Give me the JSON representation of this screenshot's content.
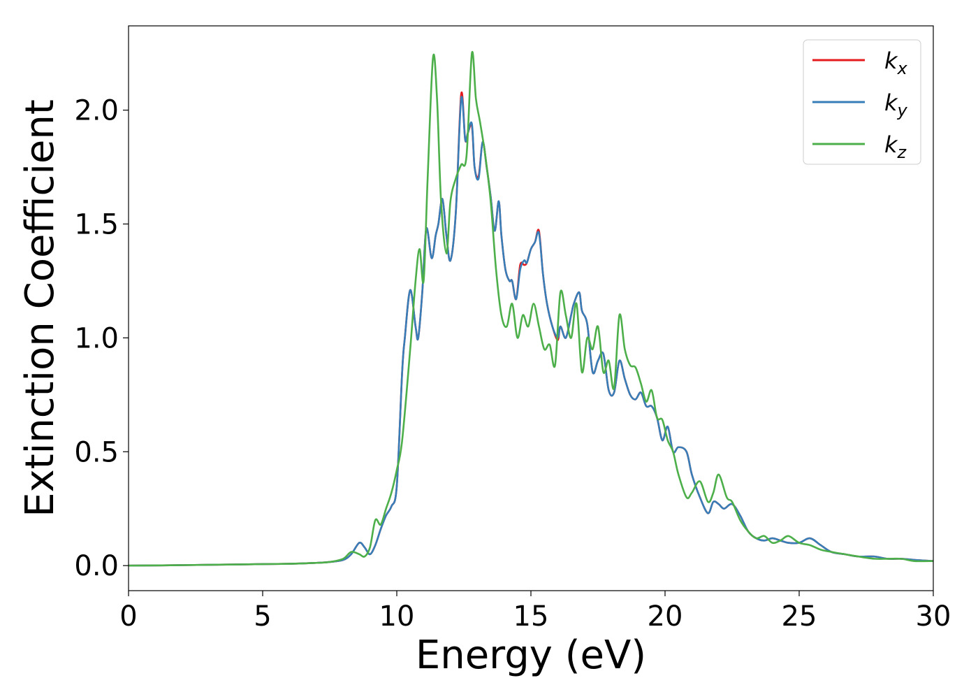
{
  "chart_data": {
    "type": "line",
    "xlabel": "Energy (eV)",
    "ylabel": "Extinction Coefficient",
    "xlim": [
      0,
      30
    ],
    "ylim": [
      -0.11,
      2.37
    ],
    "xticks": [
      0,
      5,
      10,
      15,
      20,
      25,
      30
    ],
    "xtick_labels": [
      "0",
      "5",
      "10",
      "15",
      "20",
      "25",
      "30"
    ],
    "yticks": [
      0.0,
      0.5,
      1.0,
      1.5,
      2.0
    ],
    "ytick_labels": [
      "0.0",
      "0.5",
      "1.0",
      "1.5",
      "2.0"
    ],
    "grid": false,
    "legend_position": "top-right",
    "series": [
      {
        "name": "k_x",
        "label_main": "k",
        "label_sub": "x",
        "color": "#e41a1c",
        "x": [
          0,
          2,
          4,
          6,
          7,
          7.5,
          8,
          8.3,
          8.6,
          8.8,
          9.0,
          9.2,
          9.4,
          9.6,
          9.8,
          10.0,
          10.2,
          10.3,
          10.5,
          10.7,
          10.8,
          10.95,
          11.1,
          11.3,
          11.45,
          11.55,
          11.7,
          11.85,
          12.0,
          12.2,
          12.4,
          12.55,
          12.65,
          12.8,
          12.9,
          13.05,
          13.2,
          13.35,
          13.5,
          13.65,
          13.8,
          13.9,
          14.05,
          14.2,
          14.3,
          14.45,
          14.6,
          14.75,
          14.85,
          15.0,
          15.15,
          15.3,
          15.45,
          15.6,
          15.8,
          16.0,
          16.1,
          16.3,
          16.5,
          16.6,
          16.8,
          16.9,
          17.1,
          17.3,
          17.5,
          17.7,
          17.9,
          18.1,
          18.3,
          18.5,
          18.7,
          18.9,
          19.1,
          19.3,
          19.5,
          19.7,
          19.9,
          20.1,
          20.3,
          20.5,
          20.8,
          21.0,
          21.3,
          21.6,
          21.8,
          22.0,
          22.2,
          22.5,
          22.8,
          23.1,
          23.4,
          23.7,
          24.0,
          24.3,
          24.6,
          25.0,
          25.4,
          25.8,
          26.2,
          26.7,
          27.2,
          27.8,
          28.3,
          28.8,
          29.3,
          30.0
        ],
        "y": [
          0.0,
          0.002,
          0.005,
          0.008,
          0.012,
          0.016,
          0.025,
          0.05,
          0.1,
          0.08,
          0.05,
          0.09,
          0.16,
          0.22,
          0.26,
          0.35,
          0.85,
          1.0,
          1.21,
          1.05,
          1.0,
          1.2,
          1.48,
          1.35,
          1.45,
          1.5,
          1.61,
          1.45,
          1.34,
          1.55,
          2.07,
          1.87,
          1.9,
          1.93,
          1.75,
          1.71,
          1.86,
          1.75,
          1.62,
          1.47,
          1.6,
          1.45,
          1.3,
          1.25,
          1.25,
          1.17,
          1.32,
          1.32,
          1.33,
          1.39,
          1.42,
          1.47,
          1.28,
          1.15,
          1.05,
          0.99,
          1.05,
          1.0,
          1.1,
          1.15,
          1.2,
          1.12,
          1.06,
          0.85,
          0.9,
          0.93,
          0.77,
          0.76,
          0.9,
          0.82,
          0.75,
          0.73,
          0.76,
          0.7,
          0.7,
          0.65,
          0.55,
          0.61,
          0.5,
          0.52,
          0.5,
          0.4,
          0.3,
          0.23,
          0.28,
          0.27,
          0.25,
          0.27,
          0.22,
          0.15,
          0.12,
          0.11,
          0.12,
          0.11,
          0.1,
          0.1,
          0.12,
          0.09,
          0.06,
          0.05,
          0.04,
          0.04,
          0.03,
          0.03,
          0.025,
          0.02
        ]
      },
      {
        "name": "k_y",
        "label_main": "k",
        "label_sub": "y",
        "color": "#377eb8",
        "x": [
          0,
          2,
          4,
          6,
          7,
          7.5,
          8,
          8.3,
          8.6,
          8.8,
          9.0,
          9.2,
          9.4,
          9.6,
          9.8,
          10.0,
          10.2,
          10.3,
          10.5,
          10.7,
          10.8,
          10.95,
          11.1,
          11.3,
          11.45,
          11.55,
          11.7,
          11.85,
          12.0,
          12.2,
          12.4,
          12.55,
          12.65,
          12.8,
          12.9,
          13.05,
          13.2,
          13.35,
          13.5,
          13.65,
          13.8,
          13.9,
          14.05,
          14.2,
          14.3,
          14.45,
          14.6,
          14.75,
          14.85,
          15.0,
          15.15,
          15.3,
          15.45,
          15.6,
          15.8,
          16.0,
          16.1,
          16.3,
          16.5,
          16.6,
          16.8,
          16.9,
          17.1,
          17.3,
          17.5,
          17.7,
          17.9,
          18.1,
          18.3,
          18.5,
          18.7,
          18.9,
          19.1,
          19.3,
          19.5,
          19.7,
          19.9,
          20.1,
          20.3,
          20.5,
          20.8,
          21.0,
          21.3,
          21.6,
          21.8,
          22.0,
          22.2,
          22.5,
          22.8,
          23.1,
          23.4,
          23.7,
          24.0,
          24.3,
          24.6,
          25.0,
          25.4,
          25.8,
          26.2,
          26.7,
          27.2,
          27.8,
          28.3,
          28.8,
          29.3,
          30.0
        ],
        "y": [
          0.0,
          0.002,
          0.005,
          0.008,
          0.012,
          0.016,
          0.025,
          0.05,
          0.1,
          0.08,
          0.05,
          0.09,
          0.16,
          0.22,
          0.26,
          0.35,
          0.85,
          1.0,
          1.21,
          1.05,
          1.0,
          1.2,
          1.48,
          1.35,
          1.45,
          1.5,
          1.61,
          1.45,
          1.34,
          1.55,
          2.05,
          1.87,
          1.9,
          1.94,
          1.75,
          1.7,
          1.86,
          1.75,
          1.62,
          1.47,
          1.6,
          1.45,
          1.3,
          1.25,
          1.25,
          1.17,
          1.3,
          1.34,
          1.33,
          1.39,
          1.42,
          1.46,
          1.28,
          1.15,
          1.05,
          1.0,
          1.05,
          1.0,
          1.1,
          1.15,
          1.2,
          1.12,
          1.06,
          0.85,
          0.9,
          0.93,
          0.77,
          0.76,
          0.9,
          0.82,
          0.75,
          0.73,
          0.76,
          0.7,
          0.7,
          0.65,
          0.55,
          0.61,
          0.5,
          0.52,
          0.5,
          0.4,
          0.3,
          0.23,
          0.28,
          0.27,
          0.25,
          0.27,
          0.22,
          0.15,
          0.12,
          0.11,
          0.12,
          0.11,
          0.1,
          0.1,
          0.12,
          0.09,
          0.06,
          0.05,
          0.04,
          0.04,
          0.03,
          0.03,
          0.025,
          0.02
        ]
      },
      {
        "name": "k_z",
        "label_main": "k",
        "label_sub": "z",
        "color": "#4daf4a",
        "x": [
          0,
          2,
          4,
          6,
          7,
          7.5,
          8,
          8.3,
          8.6,
          8.8,
          9.0,
          9.2,
          9.4,
          9.6,
          9.8,
          10.0,
          10.2,
          10.5,
          10.7,
          10.85,
          11.0,
          11.15,
          11.35,
          11.5,
          11.65,
          11.85,
          12.0,
          12.2,
          12.4,
          12.6,
          12.8,
          12.95,
          13.1,
          13.3,
          13.5,
          13.7,
          13.9,
          14.1,
          14.3,
          14.5,
          14.7,
          14.9,
          15.1,
          15.3,
          15.5,
          15.7,
          15.9,
          16.1,
          16.3,
          16.5,
          16.7,
          16.9,
          17.1,
          17.3,
          17.5,
          17.7,
          17.9,
          18.1,
          18.3,
          18.5,
          18.7,
          18.9,
          19.1,
          19.3,
          19.5,
          19.7,
          19.9,
          20.1,
          20.3,
          20.5,
          20.8,
          21.0,
          21.3,
          21.6,
          21.8,
          22.0,
          22.3,
          22.5,
          22.8,
          23.1,
          23.4,
          23.7,
          24.0,
          24.3,
          24.6,
          25.0,
          25.4,
          25.8,
          26.2,
          26.7,
          27.2,
          27.8,
          28.3,
          28.8,
          29.3,
          30.0
        ],
        "y": [
          0.0,
          0.002,
          0.005,
          0.008,
          0.012,
          0.016,
          0.03,
          0.06,
          0.05,
          0.04,
          0.08,
          0.2,
          0.18,
          0.25,
          0.32,
          0.42,
          0.55,
          0.95,
          1.25,
          1.39,
          1.25,
          1.7,
          2.23,
          2.05,
          1.6,
          1.37,
          1.6,
          1.7,
          1.76,
          1.8,
          2.25,
          2.05,
          1.95,
          1.8,
          1.6,
          1.3,
          1.1,
          1.05,
          1.15,
          1.0,
          1.1,
          1.05,
          1.15,
          1.05,
          0.95,
          0.97,
          0.88,
          1.2,
          1.1,
          1.0,
          1.15,
          0.85,
          1.0,
          0.95,
          1.05,
          0.85,
          0.9,
          0.78,
          1.1,
          0.95,
          0.88,
          0.87,
          0.8,
          0.72,
          0.77,
          0.65,
          0.64,
          0.55,
          0.5,
          0.4,
          0.3,
          0.32,
          0.37,
          0.28,
          0.32,
          0.4,
          0.3,
          0.28,
          0.2,
          0.15,
          0.12,
          0.13,
          0.1,
          0.11,
          0.13,
          0.1,
          0.09,
          0.07,
          0.06,
          0.05,
          0.04,
          0.03,
          0.03,
          0.03,
          0.02,
          0.02
        ]
      }
    ]
  }
}
